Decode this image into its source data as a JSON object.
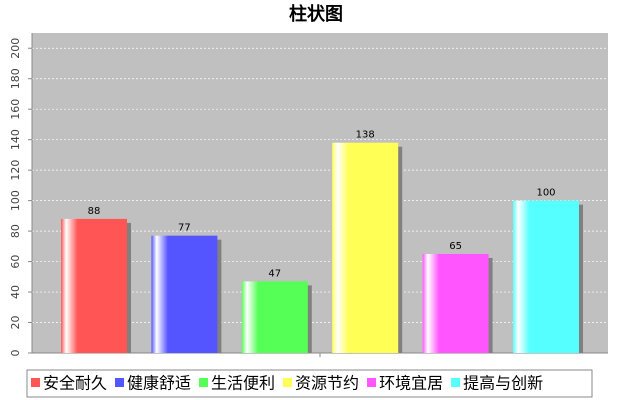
{
  "chart_data": {
    "type": "bar",
    "title": "柱状图",
    "categories": [
      null
    ],
    "series": [
      {
        "name": "安全耐久",
        "color": "#ff5555",
        "values": [
          88
        ]
      },
      {
        "name": "健康舒适",
        "color": "#5555ff",
        "values": [
          77
        ]
      },
      {
        "name": "生活便利",
        "color": "#55ff55",
        "values": [
          47
        ]
      },
      {
        "name": "资源节约",
        "color": "#ffff55",
        "values": [
          138
        ]
      },
      {
        "name": "环境宜居",
        "color": "#ff55ff",
        "values": [
          65
        ]
      },
      {
        "name": "提高与创新",
        "color": "#55ffff",
        "values": [
          100
        ]
      }
    ],
    "ylim": [
      0,
      210
    ],
    "yticks": [
      0,
      20,
      40,
      60,
      80,
      100,
      120,
      140,
      160,
      180,
      200
    ],
    "grid": true,
    "legend": "bottom"
  }
}
